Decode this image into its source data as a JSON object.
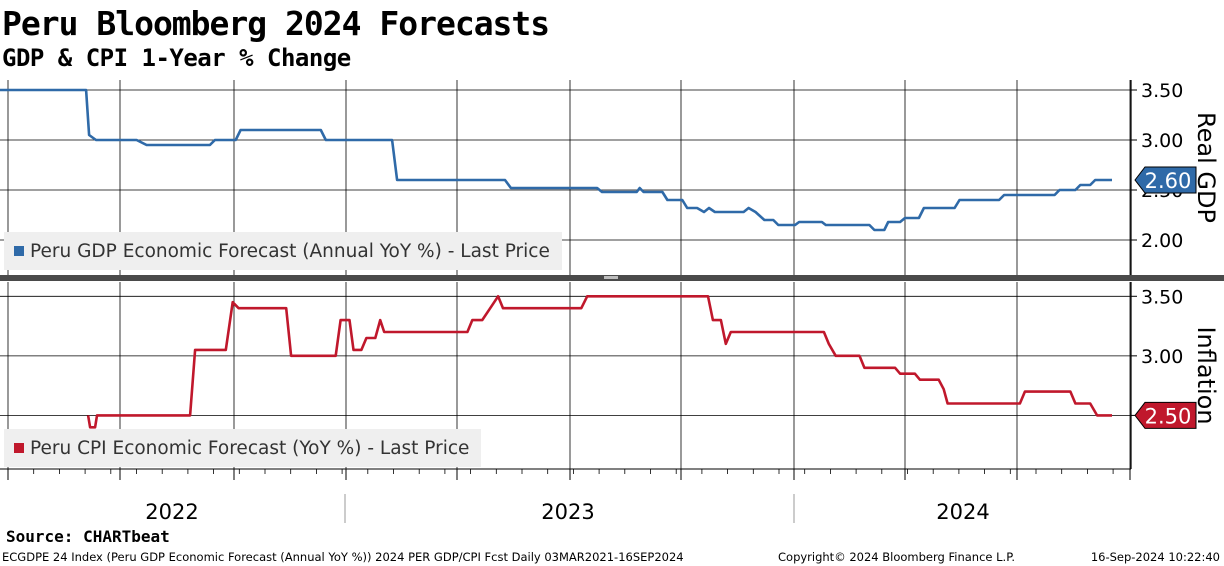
{
  "title": "Peru Bloomberg 2024 Forecasts",
  "subtitle": "GDP & CPI 1-Year % Change",
  "source": "Source: CHARTbeat",
  "footer": {
    "left": "ECGDPE 24 Index (Peru GDP Economic Forecast (Annual YoY %)) 2024 PER GDP/CPI Fcst  Daily 03MAR2021-16SEP2024",
    "mid": "Copyright© 2024 Bloomberg Finance L.P.",
    "right": "16-Sep-2024 10:22:40"
  },
  "colors": {
    "gdp": "#2f6aa8",
    "cpi": "#c0182c",
    "grid": "#000000"
  },
  "chart_data": [
    {
      "type": "line",
      "panel": "top",
      "ylabel": "Real GDP",
      "ylim": [
        1.65,
        3.6
      ],
      "yticks": [
        "3.50",
        "3.00",
        "2.50",
        "2.00"
      ],
      "x_labels": [
        "2022",
        "2023",
        "2024"
      ],
      "x_range": [
        "2021-08-20",
        "2024-09-16"
      ],
      "last_value": "2.60",
      "series": [
        {
          "name": "Peru GDP Economic Forecast (Annual YoY %) - Last Price",
          "color": "#2f6aa8",
          "points": [
            [
              "2021-08-20",
              3.5
            ],
            [
              "2021-11-15",
              3.5
            ],
            [
              "2021-11-18",
              3.05
            ],
            [
              "2021-11-25",
              3.0
            ],
            [
              "2022-01-05",
              3.0
            ],
            [
              "2022-01-15",
              2.95
            ],
            [
              "2022-03-20",
              2.95
            ],
            [
              "2022-03-25",
              3.0
            ],
            [
              "2022-04-15",
              3.0
            ],
            [
              "2022-04-20",
              3.1
            ],
            [
              "2022-07-10",
              3.1
            ],
            [
              "2022-07-15",
              3.0
            ],
            [
              "2022-09-20",
              3.0
            ],
            [
              "2022-09-25",
              2.6
            ],
            [
              "2023-01-12",
              2.6
            ],
            [
              "2023-01-18",
              2.52
            ],
            [
              "2023-04-15",
              2.52
            ],
            [
              "2023-04-20",
              2.48
            ],
            [
              "2023-05-25",
              2.48
            ],
            [
              "2023-05-28",
              2.52
            ],
            [
              "2023-06-01",
              2.48
            ],
            [
              "2023-06-20",
              2.48
            ],
            [
              "2023-06-25",
              2.4
            ],
            [
              "2023-07-10",
              2.4
            ],
            [
              "2023-07-15",
              2.32
            ],
            [
              "2023-07-25",
              2.32
            ],
            [
              "2023-08-01",
              2.28
            ],
            [
              "2023-08-06",
              2.32
            ],
            [
              "2023-08-12",
              2.28
            ],
            [
              "2023-09-10",
              2.28
            ],
            [
              "2023-09-15",
              2.32
            ],
            [
              "2023-09-22",
              2.28
            ],
            [
              "2023-10-01",
              2.2
            ],
            [
              "2023-10-10",
              2.2
            ],
            [
              "2023-10-15",
              2.15
            ],
            [
              "2023-11-01",
              2.15
            ],
            [
              "2023-11-05",
              2.18
            ],
            [
              "2023-11-28",
              2.18
            ],
            [
              "2023-12-02",
              2.15
            ],
            [
              "2024-01-15",
              2.15
            ],
            [
              "2024-01-20",
              2.1
            ],
            [
              "2024-01-30",
              2.1
            ],
            [
              "2024-02-03",
              2.18
            ],
            [
              "2024-02-15",
              2.18
            ],
            [
              "2024-02-20",
              2.22
            ],
            [
              "2024-03-05",
              2.22
            ],
            [
              "2024-03-10",
              2.32
            ],
            [
              "2024-04-10",
              2.32
            ],
            [
              "2024-04-15",
              2.4
            ],
            [
              "2024-05-25",
              2.4
            ],
            [
              "2024-05-30",
              2.45
            ],
            [
              "2024-07-20",
              2.45
            ],
            [
              "2024-07-25",
              2.5
            ],
            [
              "2024-08-10",
              2.5
            ],
            [
              "2024-08-15",
              2.55
            ],
            [
              "2024-08-25",
              2.55
            ],
            [
              "2024-08-30",
              2.6
            ],
            [
              "2024-09-16",
              2.6
            ]
          ]
        }
      ]
    },
    {
      "type": "line",
      "panel": "bottom",
      "ylabel": "Inflation",
      "ylim": [
        2.05,
        3.62
      ],
      "yticks": [
        "3.50",
        "3.00",
        "2.50"
      ],
      "x_labels": [
        "2022",
        "2023",
        "2024"
      ],
      "x_range": [
        "2021-08-20",
        "2024-09-16"
      ],
      "last_value": "2.50",
      "series": [
        {
          "name": "Peru CPI Economic Forecast (YoY %) - Last Price",
          "color": "#c0182c",
          "points": [
            [
              "2021-11-17",
              2.5
            ],
            [
              "2021-11-19",
              2.4
            ],
            [
              "2021-11-24",
              2.4
            ],
            [
              "2021-11-26",
              2.5
            ],
            [
              "2022-02-28",
              2.5
            ],
            [
              "2022-03-05",
              3.05
            ],
            [
              "2022-04-05",
              3.05
            ],
            [
              "2022-04-12",
              3.45
            ],
            [
              "2022-04-18",
              3.4
            ],
            [
              "2022-06-05",
              3.4
            ],
            [
              "2022-06-10",
              3.0
            ],
            [
              "2022-07-25",
              3.0
            ],
            [
              "2022-07-30",
              3.3
            ],
            [
              "2022-08-08",
              3.3
            ],
            [
              "2022-08-12",
              3.05
            ],
            [
              "2022-08-20",
              3.05
            ],
            [
              "2022-08-25",
              3.15
            ],
            [
              "2022-09-03",
              3.15
            ],
            [
              "2022-09-08",
              3.3
            ],
            [
              "2022-09-12",
              3.2
            ],
            [
              "2022-12-05",
              3.2
            ],
            [
              "2022-12-10",
              3.3
            ],
            [
              "2022-12-20",
              3.3
            ],
            [
              "2022-12-28",
              3.4
            ],
            [
              "2023-01-05",
              3.5
            ],
            [
              "2023-01-10",
              3.4
            ],
            [
              "2023-03-30",
              3.4
            ],
            [
              "2023-04-05",
              3.5
            ],
            [
              "2023-08-05",
              3.5
            ],
            [
              "2023-08-10",
              3.3
            ],
            [
              "2023-08-18",
              3.3
            ],
            [
              "2023-08-23",
              3.1
            ],
            [
              "2023-08-28",
              3.2
            ],
            [
              "2023-11-30",
              3.2
            ],
            [
              "2023-12-05",
              3.1
            ],
            [
              "2023-12-12",
              3.0
            ],
            [
              "2024-01-05",
              3.0
            ],
            [
              "2024-01-10",
              2.9
            ],
            [
              "2024-02-10",
              2.9
            ],
            [
              "2024-02-15",
              2.85
            ],
            [
              "2024-03-01",
              2.85
            ],
            [
              "2024-03-06",
              2.8
            ],
            [
              "2024-03-25",
              2.8
            ],
            [
              "2024-03-30",
              2.72
            ],
            [
              "2024-04-03",
              2.6
            ],
            [
              "2024-06-15",
              2.6
            ],
            [
              "2024-06-20",
              2.7
            ],
            [
              "2024-08-05",
              2.7
            ],
            [
              "2024-08-10",
              2.6
            ],
            [
              "2024-08-25",
              2.6
            ],
            [
              "2024-09-01",
              2.5
            ],
            [
              "2024-09-16",
              2.5
            ]
          ]
        }
      ]
    }
  ]
}
